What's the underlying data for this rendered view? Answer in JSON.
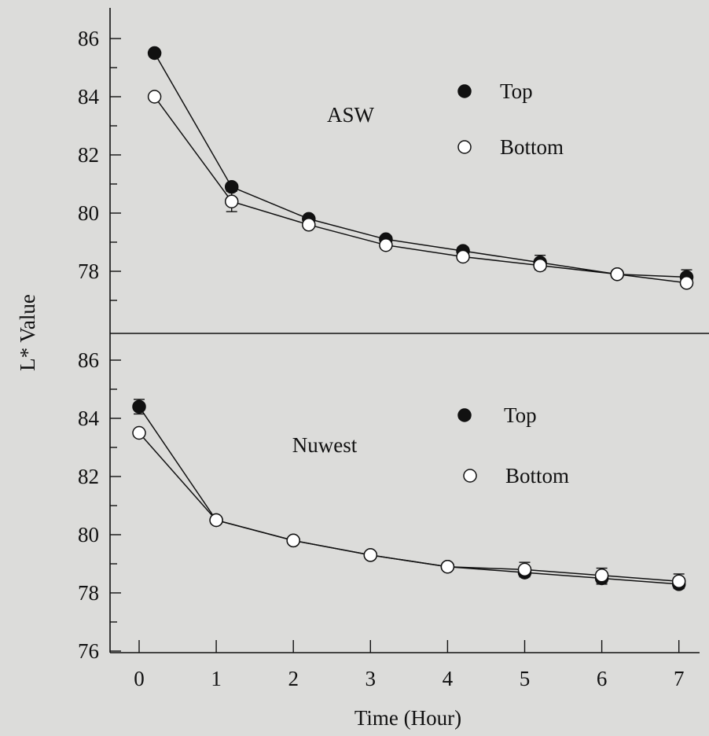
{
  "chart_data": {
    "type": "scatter",
    "xlabel": "Time (Hour)",
    "ylabel": "L* Value",
    "x_ticks": [
      "0",
      "1",
      "2",
      "3",
      "4",
      "5",
      "6",
      "7"
    ],
    "colors": {
      "top_marker": "#111111",
      "bottom_marker": "#ffffff",
      "line": "#111111"
    },
    "panels": [
      {
        "label": "ASW",
        "ylim": [
          76.5,
          86.5
        ],
        "y_ticks": [
          "78",
          "80",
          "82",
          "84",
          "86"
        ],
        "legend": {
          "top": "Top",
          "bottom": "Bottom"
        },
        "series": [
          {
            "name": "Top",
            "marker": "filled",
            "x": [
              0.2,
              1.2,
              2.2,
              3.2,
              4.2,
              5.2,
              6.2,
              7.1
            ],
            "y": [
              85.5,
              80.9,
              79.8,
              79.1,
              78.7,
              78.3,
              77.9,
              77.8
            ],
            "err": [
              0,
              0,
              0,
              0,
              0,
              0.25,
              0,
              0.25
            ]
          },
          {
            "name": "Bottom",
            "marker": "open",
            "x": [
              0.2,
              1.2,
              2.2,
              3.2,
              4.2,
              5.2,
              6.2,
              7.1
            ],
            "y": [
              84.0,
              80.4,
              79.6,
              78.9,
              78.5,
              78.2,
              77.9,
              77.6
            ],
            "err": [
              0,
              0.35,
              0,
              0,
              0,
              0,
              0,
              0
            ]
          }
        ]
      },
      {
        "label": "Nuwest",
        "ylim": [
          76.0,
          86.5
        ],
        "y_ticks": [
          "76",
          "78",
          "80",
          "82",
          "84",
          "86"
        ],
        "legend": {
          "top": "Top",
          "bottom": "Bottom"
        },
        "series": [
          {
            "name": "Top",
            "marker": "filled",
            "x": [
              0,
              1,
              2,
              3,
              4,
              5,
              6,
              7
            ],
            "y": [
              84.4,
              80.5,
              79.8,
              79.3,
              78.9,
              78.7,
              78.5,
              78.3
            ],
            "err": [
              0.25,
              0,
              0,
              0,
              0,
              0,
              0.2,
              0
            ]
          },
          {
            "name": "Bottom",
            "marker": "open",
            "x": [
              0,
              1,
              2,
              3,
              4,
              5,
              6,
              7
            ],
            "y": [
              83.5,
              80.5,
              79.8,
              79.3,
              78.9,
              78.8,
              78.6,
              78.4
            ],
            "err": [
              0,
              0,
              0,
              0,
              0,
              0.25,
              0.25,
              0.25
            ]
          }
        ]
      }
    ]
  }
}
